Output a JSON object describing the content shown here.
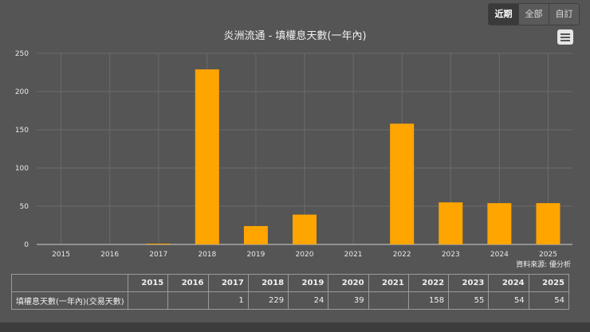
{
  "range_buttons": [
    {
      "label": "近期",
      "active": true
    },
    {
      "label": "全部",
      "active": false
    },
    {
      "label": "自訂",
      "active": false
    }
  ],
  "chart_data": {
    "type": "bar",
    "title": "炎洲流通 - 填權息天數(一年內)",
    "categories": [
      "2015",
      "2016",
      "2017",
      "2018",
      "2019",
      "2020",
      "2021",
      "2022",
      "2023",
      "2024",
      "2025"
    ],
    "values": [
      null,
      null,
      1,
      229,
      24,
      39,
      null,
      158,
      55,
      54,
      54
    ],
    "ylim": [
      0,
      250
    ],
    "yticks": [
      0,
      50,
      100,
      150,
      200,
      250
    ],
    "grid": true,
    "bar_color": "#FFA500",
    "source": "資料來源: 優分析"
  },
  "table": {
    "row_label": "填權息天數(一年內)(交易天數)"
  },
  "colors": {
    "background": "#555555",
    "grid": "#6a6a6a",
    "bar": "#FFA500"
  },
  "menu_icon": "hamburger-icon"
}
